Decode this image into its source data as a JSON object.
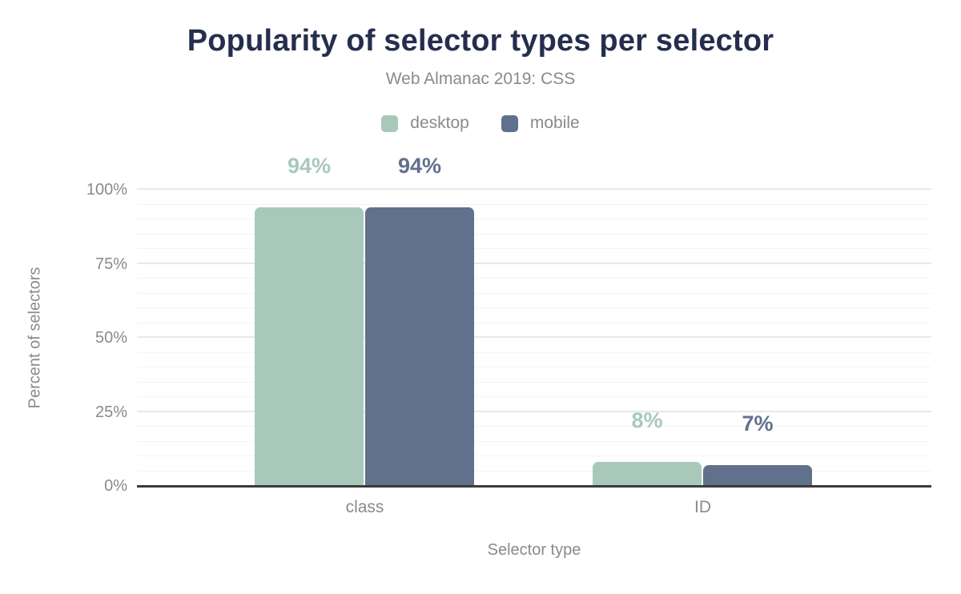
{
  "chart_data": {
    "type": "bar",
    "title": "Popularity of selector types per selector",
    "subtitle": "Web Almanac 2019: CSS",
    "xlabel": "Selector type",
    "ylabel": "Percent of selectors",
    "categories": [
      "class",
      "ID"
    ],
    "series": [
      {
        "name": "desktop",
        "color": "#a8c9ba",
        "values": [
          94,
          8
        ],
        "labels": [
          "94%",
          "8%"
        ]
      },
      {
        "name": "mobile",
        "color": "#61718c",
        "values": [
          94,
          7
        ],
        "labels": [
          "94%",
          "7%"
        ]
      }
    ],
    "ylim": [
      0,
      100
    ],
    "yticks": [
      0,
      25,
      50,
      75,
      100
    ],
    "ytick_labels": [
      "0%",
      "25%",
      "50%",
      "75%",
      "100%"
    ],
    "grid": "horizontal lines every 5%, emphasized every 25%",
    "legend_position": "top-center"
  },
  "colors": {
    "title_text": "#242e4e",
    "muted_text": "#8a8a8a",
    "axis_line": "#3a3b3e",
    "grid_minor": "#f4f4f4",
    "grid_major": "#e8e8e8",
    "background": "#ffffff",
    "desktop_series": "#a8c9ba",
    "mobile_series": "#61718c"
  }
}
